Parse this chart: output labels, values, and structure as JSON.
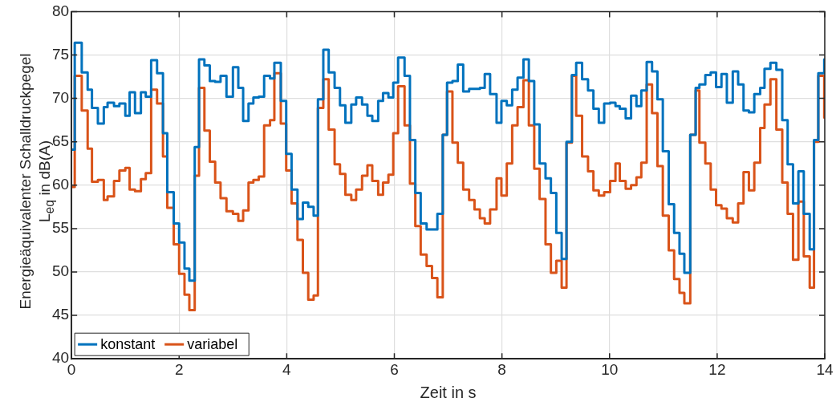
{
  "chart_data": {
    "type": "step",
    "xlabel": "Zeit in s",
    "ylabel": "Energieäquivalenter Schalldruckpegel\nL$_{eq}$ in dB(A)",
    "x": [
      0,
      0.06,
      0.19,
      0.3,
      0.38,
      0.49,
      0.6,
      0.67,
      0.79,
      0.89,
      1.0,
      1.08,
      1.18,
      1.29,
      1.38,
      1.48,
      1.59,
      1.7,
      1.78,
      1.9,
      2.0,
      2.1,
      2.19,
      2.29,
      2.37,
      2.47,
      2.57,
      2.67,
      2.77,
      2.88,
      3.0,
      3.1,
      3.19,
      3.29,
      3.38,
      3.48,
      3.58,
      3.69,
      3.77,
      3.89,
      3.99,
      4.09,
      4.2,
      4.3,
      4.4,
      4.5,
      4.58,
      4.68,
      4.78,
      4.89,
      4.99,
      5.09,
      5.2,
      5.29,
      5.4,
      5.5,
      5.59,
      5.7,
      5.79,
      5.89,
      5.98,
      6.07,
      6.19,
      6.29,
      6.39,
      6.49,
      6.6,
      6.7,
      6.8,
      6.9,
      6.98,
      7.08,
      7.18,
      7.28,
      7.39,
      7.49,
      7.59,
      7.68,
      7.78,
      7.9,
      7.99,
      8.09,
      8.19,
      8.29,
      8.4,
      8.5,
      8.6,
      8.7,
      8.81,
      8.91,
      9.01,
      9.11,
      9.2,
      9.3,
      9.38,
      9.49,
      9.6,
      9.7,
      9.8,
      9.9,
      10.01,
      10.11,
      10.19,
      10.3,
      10.4,
      10.5,
      10.59,
      10.69,
      10.79,
      10.89,
      10.99,
      11.1,
      11.2,
      11.3,
      11.39,
      11.5,
      11.6,
      11.67,
      11.78,
      11.88,
      11.98,
      12.08,
      12.18,
      12.29,
      12.39,
      12.49,
      12.59,
      12.69,
      12.8,
      12.88,
      12.99,
      13.1,
      13.21,
      13.31,
      13.41,
      13.51,
      13.61,
      13.72,
      13.8,
      13.88,
      13.99,
      14
    ],
    "series": [
      {
        "name": "konstant",
        "color": "#0072bd",
        "values": [
          64.1,
          76.4,
          73.0,
          71.0,
          68.9,
          67.1,
          69.0,
          69.5,
          69.1,
          69.4,
          68.0,
          70.7,
          68.3,
          70.7,
          70.2,
          74.4,
          72.9,
          66.0,
          59.2,
          55.6,
          53.4,
          50.4,
          49.0,
          64.4,
          74.5,
          73.8,
          72.0,
          71.9,
          72.6,
          70.2,
          73.6,
          71.2,
          67.4,
          69.4,
          70.1,
          70.2,
          72.6,
          72.3,
          74.1,
          69.7,
          63.6,
          59.5,
          56.1,
          58.0,
          57.5,
          56.5,
          69.9,
          75.6,
          73.0,
          71.2,
          69.2,
          67.2,
          69.3,
          70.1,
          69.3,
          68.0,
          67.4,
          69.7,
          70.6,
          70.1,
          71.8,
          74.7,
          72.6,
          65.2,
          59.1,
          55.6,
          54.9,
          54.9,
          56.7,
          65.8,
          71.8,
          72.0,
          73.9,
          70.8,
          71.1,
          71.1,
          71.2,
          72.8,
          70.5,
          67.2,
          69.7,
          69.2,
          71.0,
          72.4,
          74.5,
          72.0,
          67.0,
          62.5,
          60.8,
          59.1,
          54.5,
          51.5,
          65.0,
          72.7,
          74.1,
          72.2,
          70.9,
          68.8,
          67.2,
          69.4,
          69.5,
          69.1,
          68.8,
          67.7,
          70.3,
          69.1,
          70.9,
          74.2,
          73.1,
          69.9,
          63.9,
          57.8,
          54.5,
          52.1,
          49.9,
          65.8,
          71.2,
          71.6,
          72.7,
          73.0,
          71.3,
          72.8,
          69.5,
          73.1,
          71.6,
          68.6,
          68.4,
          70.5,
          71.2,
          73.4,
          74.1,
          73.3,
          67.5,
          62.4,
          57.9,
          61.6,
          56.7,
          52.6,
          65.2,
          72.9,
          74.5,
          74.5
        ]
      },
      {
        "name": "variabel",
        "color": "#d95319",
        "values": [
          59.8,
          72.6,
          68.6,
          64.2,
          60.4,
          60.6,
          58.3,
          58.7,
          60.5,
          61.7,
          62.0,
          59.5,
          59.3,
          60.7,
          61.4,
          71.0,
          69.4,
          63.3,
          57.4,
          53.2,
          49.8,
          47.4,
          45.6,
          61.1,
          71.2,
          66.3,
          62.7,
          60.3,
          58.5,
          57.0,
          56.7,
          55.9,
          57.1,
          60.3,
          60.6,
          61.0,
          66.9,
          67.5,
          72.9,
          67.1,
          61.7,
          57.9,
          53.7,
          49.9,
          46.8,
          47.3,
          68.9,
          72.2,
          66.4,
          62.4,
          61.3,
          58.9,
          58.3,
          59.5,
          61.1,
          62.3,
          60.5,
          58.9,
          60.3,
          61.2,
          66.0,
          71.4,
          66.9,
          60.2,
          55.3,
          52.0,
          50.7,
          49.3,
          47.1,
          65.8,
          70.8,
          64.9,
          62.6,
          59.5,
          58.3,
          57.2,
          56.2,
          55.6,
          57.2,
          60.8,
          58.8,
          62.5,
          66.9,
          69.0,
          72.1,
          66.9,
          61.9,
          58.4,
          53.2,
          49.9,
          51.3,
          48.2,
          64.9,
          72.6,
          68.0,
          63.3,
          61.6,
          59.4,
          58.8,
          59.2,
          60.5,
          62.5,
          60.5,
          59.6,
          60.0,
          60.9,
          62.6,
          71.6,
          68.3,
          62.2,
          56.5,
          52.5,
          49.2,
          47.6,
          46.4,
          65.8,
          70.9,
          64.9,
          62.5,
          59.5,
          57.7,
          57.3,
          56.2,
          55.7,
          57.9,
          61.5,
          59.4,
          62.6,
          66.6,
          69.3,
          72.2,
          66.4,
          60.3,
          56.7,
          51.4,
          58.1,
          51.8,
          48.2,
          65.0,
          72.6,
          67.8,
          67.8
        ]
      }
    ],
    "xlim": [
      0,
      14
    ],
    "xticks": [
      0,
      2,
      4,
      6,
      8,
      10,
      12,
      14
    ],
    "ylim": [
      40,
      80
    ],
    "yticks": [
      40,
      45,
      50,
      55,
      60,
      65,
      70,
      75,
      80
    ],
    "grid": true,
    "legend": "bottom left",
    "marker": "none"
  }
}
